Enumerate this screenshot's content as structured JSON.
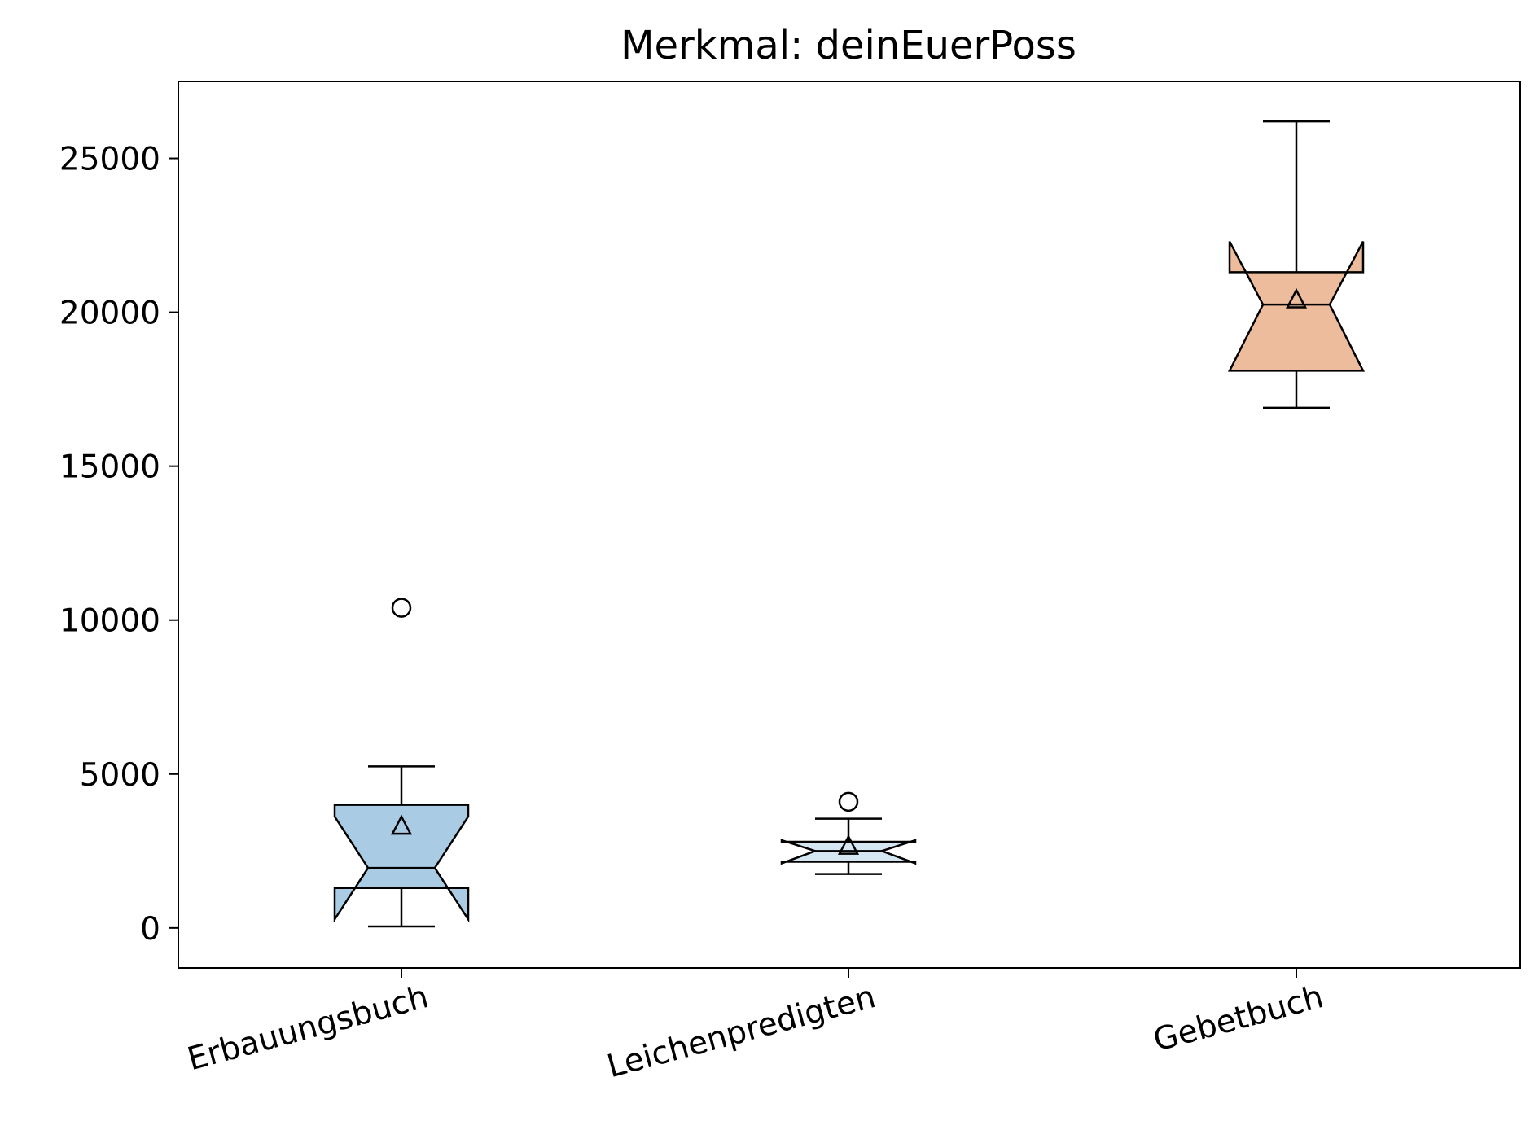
{
  "chart_data": {
    "type": "box",
    "title": "Merkmal: deinEuerPoss",
    "xlabel": "",
    "ylabel": "",
    "ylim": [
      -1300,
      27500
    ],
    "yticks": [
      0,
      5000,
      10000,
      15000,
      20000,
      25000
    ],
    "ytick_labels": [
      "0",
      "5000",
      "10000",
      "15000",
      "20000",
      "25000"
    ],
    "notched": true,
    "show_means": true,
    "grid": false,
    "categories": [
      "Erbauungsbuch",
      "Leichenpredigten",
      "Gebetbuch"
    ],
    "boxes": [
      {
        "name": "Erbauungsbuch",
        "color": "#a9cbe3",
        "whisker_low": 50,
        "q1": 1300,
        "median": 1950,
        "q3": 4000,
        "whisker_high": 5250,
        "notch_low": 280,
        "notch_high": 3620,
        "mean": 3300,
        "outliers": [
          10400
        ]
      },
      {
        "name": "Leichenpredigten",
        "color": "#d4e6f2",
        "whisker_low": 1750,
        "q1": 2150,
        "median": 2500,
        "q3": 2800,
        "whisker_high": 3550,
        "notch_low": 2100,
        "notch_high": 2850,
        "mean": 2650,
        "outliers": [
          4100
        ]
      },
      {
        "name": "Gebetbuch",
        "color": "#edbc9c",
        "whisker_low": 16900,
        "q1": 18100,
        "median": 20250,
        "q3": 21300,
        "whisker_high": 26200,
        "notch_low": 18100,
        "notch_high": 22300,
        "mean": 20400,
        "outliers": []
      }
    ]
  }
}
